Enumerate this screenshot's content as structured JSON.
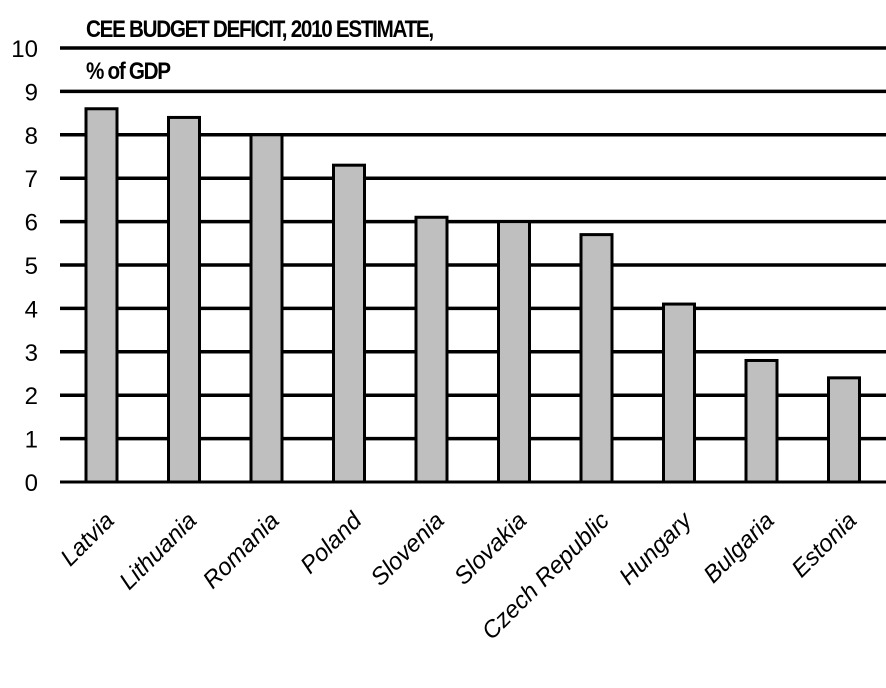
{
  "chart_data": {
    "type": "bar",
    "title": [
      "CEE BUDGET DEFICIT, 2010 ESTIMATE,",
      "% of GDP"
    ],
    "categories": [
      "Latvia",
      "Lithuania",
      "Romania",
      "Poland",
      "Slovenia",
      "Slovakia",
      "Czech Republic",
      "Hungary",
      "Bulgaria",
      "Estonia"
    ],
    "values": [
      8.6,
      8.4,
      8.0,
      7.3,
      6.1,
      6.0,
      5.7,
      4.1,
      2.8,
      2.4
    ],
    "ylim": [
      0,
      10
    ],
    "yticks": [
      "0",
      "1",
      "2",
      "3",
      "4",
      "5",
      "6",
      "7",
      "8",
      "9",
      "10"
    ],
    "grid": true,
    "bar_color": "#bfbfbf",
    "grid_color": "#000000"
  }
}
